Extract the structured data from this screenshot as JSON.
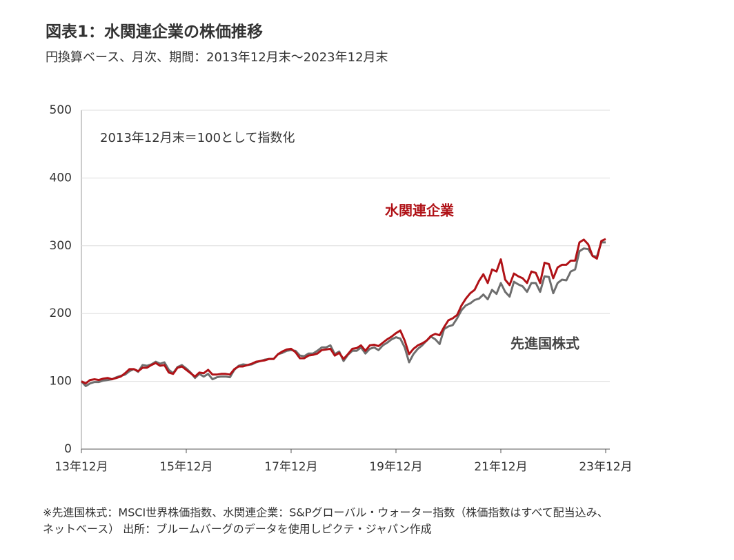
{
  "chart_data": {
    "type": "line",
    "title": "図表1：水関連企業の株価推移",
    "subtitle": "円換算ベース、月次、期間：2013年12月末～2023年12月末",
    "annotation": "2013年12月末＝100として指数化",
    "note": [
      "※先進国株式：MSCI世界株価指数、水関連企業：S&Pグローバル・ウォーター指数（株価指数はすべて配当込み、",
      "ネットベース） 出所：ブルームバーグのデータを使用しピクテ・ジャパン作成"
    ],
    "categories": [
      "13年12月",
      null,
      null,
      null,
      null,
      null,
      null,
      null,
      null,
      null,
      null,
      null,
      null,
      null,
      null,
      null,
      null,
      null,
      null,
      null,
      null,
      null,
      null,
      null,
      "15年12月",
      null,
      null,
      null,
      null,
      null,
      null,
      null,
      null,
      null,
      null,
      null,
      null,
      null,
      null,
      null,
      null,
      null,
      null,
      null,
      null,
      null,
      null,
      null,
      "17年12月",
      null,
      null,
      null,
      null,
      null,
      null,
      null,
      null,
      null,
      null,
      null,
      null,
      null,
      null,
      null,
      null,
      null,
      null,
      null,
      null,
      null,
      null,
      null,
      "19年12月",
      null,
      null,
      null,
      null,
      null,
      null,
      null,
      null,
      null,
      null,
      null,
      null,
      null,
      null,
      null,
      null,
      null,
      null,
      null,
      null,
      null,
      null,
      null,
      "21年12月",
      null,
      null,
      null,
      null,
      null,
      null,
      null,
      null,
      null,
      null,
      null,
      null,
      null,
      null,
      null,
      null,
      null,
      null,
      null,
      null,
      null,
      null,
      null,
      "23年12月"
    ],
    "series": [
      {
        "name": "水関連企業",
        "color": "#b01217",
        "values": [
          100,
          97,
          102,
          103,
          102,
          104,
          105,
          103,
          105,
          107,
          112,
          118,
          118,
          115,
          120,
          120,
          124,
          127,
          123,
          124,
          113,
          111,
          120,
          122,
          117,
          112,
          107,
          113,
          112,
          117,
          110,
          110,
          111,
          111,
          110,
          118,
          122,
          122,
          124,
          126,
          129,
          130,
          131,
          133,
          133,
          140,
          144,
          147,
          148,
          143,
          134,
          134,
          138,
          139,
          141,
          146,
          147,
          148,
          138,
          142,
          133,
          140,
          148,
          149,
          153,
          145,
          153,
          154,
          152,
          157,
          162,
          166,
          171,
          175,
          160,
          140,
          148,
          153,
          156,
          160,
          167,
          170,
          168,
          180,
          190,
          193,
          198,
          212,
          222,
          230,
          235,
          248,
          258,
          245,
          265,
          262,
          280,
          250,
          242,
          259,
          255,
          252,
          245,
          262,
          260,
          245,
          275,
          273,
          252,
          268,
          272,
          272,
          278,
          278,
          305,
          309,
          302,
          285,
          281,
          307,
          310
        ]
      },
      {
        "name": "先進国株式",
        "color": "#6e6e6e",
        "values": [
          100,
          93,
          97,
          99,
          99,
          101,
          102,
          103,
          106,
          108,
          110,
          115,
          118,
          114,
          124,
          123,
          125,
          129,
          126,
          128,
          117,
          112,
          121,
          124,
          119,
          113,
          105,
          111,
          107,
          111,
          103,
          106,
          107,
          107,
          106,
          117,
          123,
          125,
          124,
          125,
          128,
          130,
          132,
          133,
          133,
          140,
          142,
          145,
          146,
          145,
          138,
          137,
          141,
          141,
          145,
          150,
          150,
          153,
          140,
          144,
          130,
          139,
          145,
          145,
          150,
          141,
          148,
          150,
          146,
          153,
          157,
          162,
          165,
          163,
          150,
          128,
          140,
          148,
          153,
          160,
          166,
          162,
          155,
          177,
          181,
          183,
          193,
          205,
          212,
          215,
          220,
          222,
          228,
          221,
          235,
          229,
          245,
          232,
          225,
          247,
          243,
          240,
          232,
          245,
          245,
          232,
          255,
          254,
          230,
          245,
          250,
          249,
          262,
          265,
          292,
          296,
          295,
          285,
          284,
          305,
          305
        ]
      }
    ],
    "ylim": [
      0,
      500
    ],
    "yticks": [
      0,
      100,
      200,
      300,
      400,
      500
    ],
    "grid": true
  }
}
